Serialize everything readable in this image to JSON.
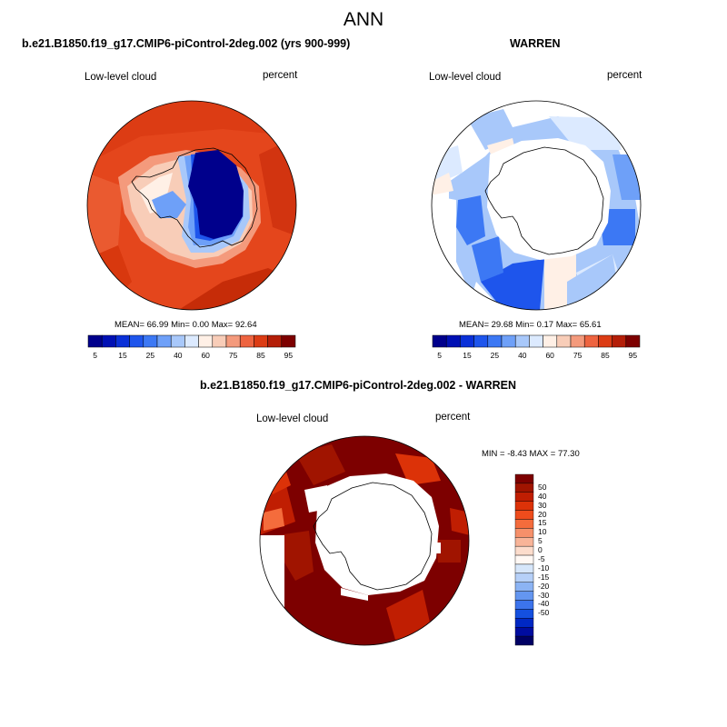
{
  "page": {
    "title": "ANN",
    "panel_left_title": "b.e21.B1850.f19_g17.CMIP6-piControl-2deg.002 (yrs 900-999)",
    "panel_right_title": "WARREN",
    "panel_bottom_title": "b.e21.B1850.f19_g17.CMIP6-piControl-2deg.002 - WARREN"
  },
  "maps": [
    {
      "variable": "Low-level cloud",
      "units": "percent",
      "stats": {
        "mean_label": "MEAN=",
        "mean": "66.99",
        "min_label": "Min=",
        "min": "0.00",
        "max_label": "Max=",
        "max": "92.64"
      }
    },
    {
      "variable": "Low-level cloud",
      "units": "percent",
      "stats": {
        "mean_label": "MEAN=",
        "mean": "29.68",
        "min_label": "Min=",
        "min": "0.17",
        "max_label": "Max=",
        "max": "65.61"
      }
    },
    {
      "variable": "Low-level cloud",
      "units": "percent",
      "stats": {
        "min_label": "MIN =",
        "min": "-8.43",
        "max_label": "MAX =",
        "max": "77.30"
      }
    }
  ],
  "colorbar_horizontal": {
    "colors": [
      "#00008c",
      "#0010b4",
      "#0a30d8",
      "#1e55ec",
      "#3c78f4",
      "#6ea0f8",
      "#a8c8fa",
      "#dceaff",
      "#fff0e6",
      "#f8cdb8",
      "#f49a7c",
      "#ee6440",
      "#dc3c14",
      "#b41e08",
      "#7d0000"
    ],
    "labels": [
      "5",
      "15",
      "25",
      "40",
      "60",
      "75",
      "85",
      "95"
    ]
  },
  "colorbar_vertical": {
    "colors": [
      "#7d0000",
      "#a01400",
      "#c01e02",
      "#dc3208",
      "#ee4c1c",
      "#f46c3c",
      "#f6906a",
      "#f8b498",
      "#fcdccc",
      "#fff8f4",
      "#d6e6fa",
      "#b6d0f8",
      "#8cb4f4",
      "#6496f0",
      "#3c74ec",
      "#1450e0",
      "#0028c4",
      "#000ca0",
      "#000064"
    ],
    "labels": [
      "50",
      "40",
      "30",
      "20",
      "15",
      "10",
      "5",
      "0",
      "-5",
      "-10",
      "-15",
      "-20",
      "-30",
      "-40",
      "-50"
    ]
  },
  "legend": {
    "land_outline_color": "#000000",
    "missing_color": "#ffffff"
  }
}
